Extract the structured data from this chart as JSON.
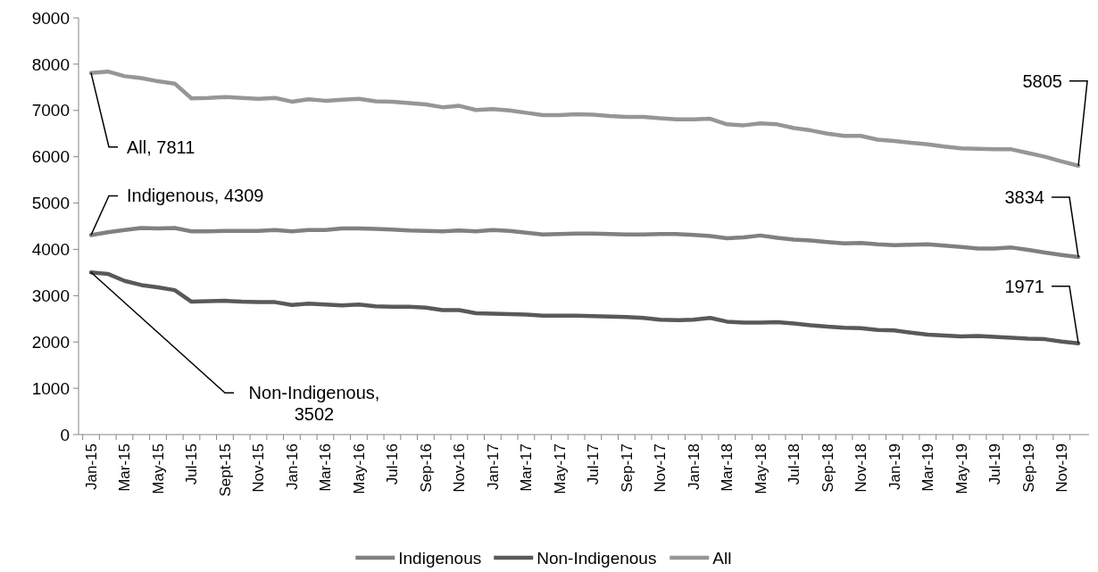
{
  "chart_data": {
    "type": "line",
    "categories": [
      "Jan-15",
      null,
      "Mar-15",
      null,
      "May-15",
      null,
      "Jul-15",
      null,
      "Sept-15",
      null,
      "Nov-15",
      null,
      "Jan-16",
      null,
      "Mar-16",
      null,
      "May-16",
      null,
      "Jul-16",
      null,
      "Sep-16",
      null,
      "Nov-16",
      null,
      "Jan-17",
      null,
      "Mar-17",
      null,
      "May-17",
      null,
      "Jul-17",
      null,
      "Sep-17",
      null,
      "Nov-17",
      null,
      "Jan-18",
      null,
      "Mar-18",
      null,
      "May-18",
      null,
      "Jul-18",
      null,
      "Sep-18",
      null,
      "Nov-18",
      null,
      "Jan-19",
      null,
      "Mar-19",
      null,
      "May-19",
      null,
      "Jul-19",
      null,
      "Sep-19",
      null,
      "Nov-19",
      null
    ],
    "series": [
      {
        "name": "Indigenous",
        "color": "#808080",
        "values": [
          4309,
          4370,
          4420,
          4460,
          4450,
          4460,
          4390,
          4390,
          4400,
          4400,
          4400,
          4420,
          4390,
          4420,
          4420,
          4450,
          4450,
          4440,
          4430,
          4410,
          4400,
          4390,
          4410,
          4390,
          4420,
          4400,
          4360,
          4320,
          4330,
          4340,
          4340,
          4330,
          4320,
          4320,
          4330,
          4330,
          4310,
          4290,
          4240,
          4260,
          4300,
          4250,
          4210,
          4190,
          4160,
          4130,
          4140,
          4110,
          4090,
          4100,
          4110,
          4080,
          4050,
          4020,
          4020,
          4040,
          3990,
          3930,
          3880,
          3834
        ],
        "value_labels": [
          "Indigenous, 4309",
          null,
          null,
          null,
          null,
          null,
          null,
          null,
          null,
          null,
          null,
          null,
          null,
          null,
          null,
          null,
          null,
          null,
          null,
          null,
          null,
          null,
          null,
          null,
          null,
          null,
          null,
          null,
          null,
          null,
          null,
          null,
          null,
          null,
          null,
          null,
          null,
          null,
          null,
          null,
          null,
          null,
          null,
          null,
          null,
          null,
          null,
          null,
          null,
          null,
          null,
          null,
          null,
          null,
          null,
          null,
          null,
          null,
          null,
          "3834"
        ]
      },
      {
        "name": "Non-Indigenous",
        "color": "#595959",
        "values": [
          3502,
          3470,
          3320,
          3230,
          3180,
          3120,
          2870,
          2880,
          2890,
          2870,
          2860,
          2860,
          2800,
          2830,
          2810,
          2790,
          2810,
          2770,
          2760,
          2760,
          2740,
          2690,
          2690,
          2620,
          2610,
          2600,
          2590,
          2570,
          2570,
          2570,
          2560,
          2550,
          2540,
          2520,
          2480,
          2470,
          2480,
          2520,
          2440,
          2420,
          2420,
          2430,
          2400,
          2360,
          2330,
          2310,
          2300,
          2260,
          2250,
          2200,
          2160,
          2140,
          2120,
          2130,
          2110,
          2090,
          2070,
          2060,
          2010,
          1971
        ],
        "value_labels": [
          "Non-Indigenous, 3502",
          null,
          null,
          null,
          null,
          null,
          null,
          null,
          null,
          null,
          null,
          null,
          null,
          null,
          null,
          null,
          null,
          null,
          null,
          null,
          null,
          null,
          null,
          null,
          null,
          null,
          null,
          null,
          null,
          null,
          null,
          null,
          null,
          null,
          null,
          null,
          null,
          null,
          null,
          null,
          null,
          null,
          null,
          null,
          null,
          null,
          null,
          null,
          null,
          null,
          null,
          null,
          null,
          null,
          null,
          null,
          null,
          null,
          null,
          "1971"
        ]
      },
      {
        "name": "All",
        "color": "#969696",
        "values": [
          7811,
          7840,
          7740,
          7700,
          7630,
          7580,
          7260,
          7270,
          7290,
          7270,
          7250,
          7270,
          7190,
          7240,
          7210,
          7230,
          7250,
          7200,
          7190,
          7160,
          7130,
          7070,
          7100,
          7010,
          7030,
          7000,
          6950,
          6900,
          6900,
          6920,
          6910,
          6880,
          6860,
          6860,
          6830,
          6810,
          6810,
          6820,
          6700,
          6680,
          6720,
          6700,
          6620,
          6570,
          6500,
          6450,
          6450,
          6370,
          6340,
          6300,
          6270,
          6220,
          6180,
          6170,
          6160,
          6160,
          6080,
          6000,
          5900,
          5805
        ],
        "value_labels": [
          "All, 7811",
          null,
          null,
          null,
          null,
          null,
          null,
          null,
          null,
          null,
          null,
          null,
          null,
          null,
          null,
          null,
          null,
          null,
          null,
          null,
          null,
          null,
          null,
          null,
          null,
          null,
          null,
          null,
          null,
          null,
          null,
          null,
          null,
          null,
          null,
          null,
          null,
          null,
          null,
          null,
          null,
          null,
          null,
          null,
          null,
          null,
          null,
          null,
          null,
          null,
          null,
          null,
          null,
          null,
          null,
          null,
          null,
          null,
          null,
          "5805"
        ]
      }
    ],
    "ylim": [
      0,
      9000
    ],
    "yticks": [
      0,
      1000,
      2000,
      3000,
      4000,
      5000,
      6000,
      7000,
      8000,
      9000
    ],
    "grid": false,
    "legend": "bottom",
    "line_style": "solid",
    "marker": "none"
  }
}
